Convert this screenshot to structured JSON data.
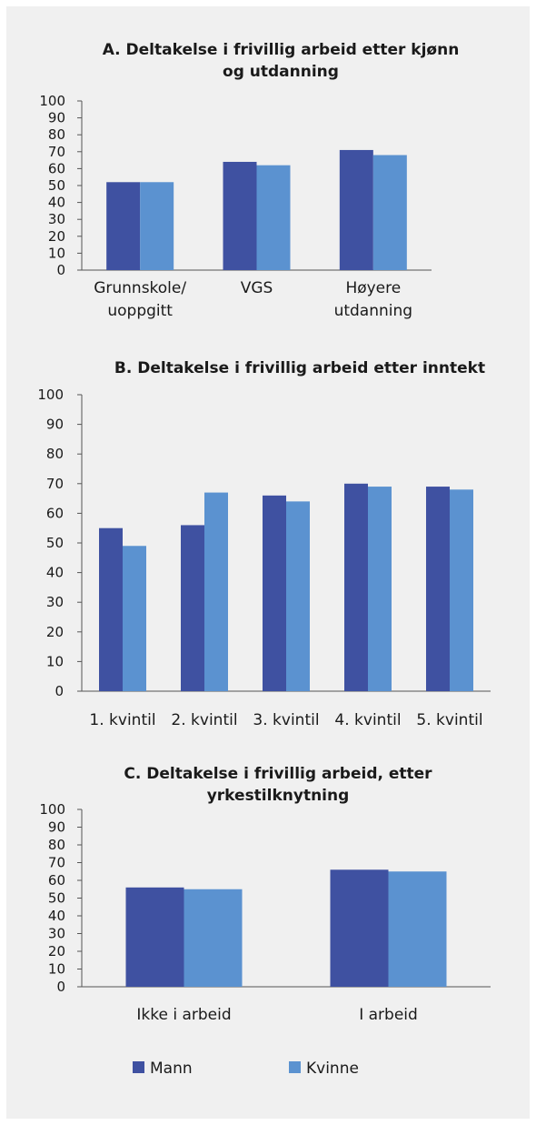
{
  "colors": {
    "mann": "#3f51a1",
    "kvinne": "#5b92d0",
    "axis": "#555555",
    "background": "#f0f0f0"
  },
  "legend": [
    {
      "name": "Mann",
      "color": "#3f51a1"
    },
    {
      "name": "Kvinne",
      "color": "#5b92d0"
    }
  ],
  "chart_data": [
    {
      "type": "bar",
      "title_lines": [
        "A. Deltakelse i frivillig arbeid etter kjønn",
        "og utdanning"
      ],
      "categories": [
        [
          "Grunnskole/",
          "uoppgitt"
        ],
        [
          "VGS"
        ],
        [
          "Høyere",
          "utdanning"
        ]
      ],
      "series": [
        {
          "name": "Mann",
          "values": [
            52,
            64,
            71
          ]
        },
        {
          "name": "Kvinne",
          "values": [
            52,
            62,
            68
          ]
        }
      ],
      "ylim": [
        0,
        100
      ],
      "yticks": [
        "0",
        "10",
        "20",
        "30",
        "40",
        "50",
        "60",
        "70",
        "80",
        "90",
        "100"
      ],
      "grid": false
    },
    {
      "type": "bar",
      "title_lines": [
        "B. Deltakelse i frivillig arbeid etter inntekt"
      ],
      "categories": [
        [
          "1. kvintil"
        ],
        [
          "2. kvintil"
        ],
        [
          "3. kvintil"
        ],
        [
          "4. kvintil"
        ],
        [
          "5. kvintil"
        ]
      ],
      "series": [
        {
          "name": "Mann",
          "values": [
            55,
            56,
            66,
            70,
            69
          ]
        },
        {
          "name": "Kvinne",
          "values": [
            49,
            67,
            64,
            69,
            68
          ]
        }
      ],
      "ylim": [
        0,
        100
      ],
      "yticks": [
        "0",
        "10",
        "20",
        "30",
        "40",
        "50",
        "60",
        "70",
        "80",
        "90",
        "100"
      ],
      "grid": false
    },
    {
      "type": "bar",
      "title_lines": [
        "C. Deltakelse i frivillig arbeid, etter",
        "yrkestilknytning"
      ],
      "categories": [
        [
          "Ikke i arbeid"
        ],
        [
          "I arbeid"
        ]
      ],
      "series": [
        {
          "name": "Mann",
          "values": [
            56,
            66
          ]
        },
        {
          "name": "Kvinne",
          "values": [
            55,
            65
          ]
        }
      ],
      "ylim": [
        0,
        100
      ],
      "yticks": [
        "0",
        "10",
        "20",
        "30",
        "40",
        "50",
        "60",
        "70",
        "80",
        "90",
        "100"
      ],
      "grid": false
    }
  ]
}
